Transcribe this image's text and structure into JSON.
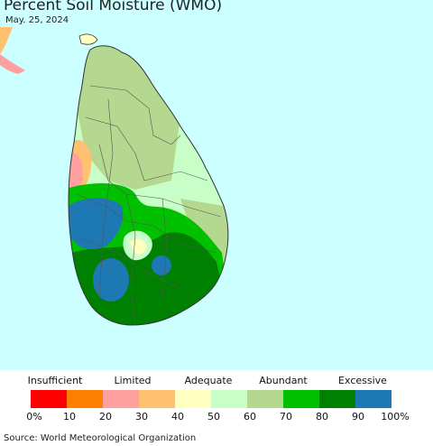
{
  "title": "Percent Soil Moisture (WMO)",
  "date": "May. 25, 2024",
  "legend": {
    "categories": [
      "Insufficient",
      "Limited",
      "Adequate",
      "Abundant",
      "Excessive"
    ],
    "colors": [
      "#ff0000",
      "#ff7f00",
      "#ffa0a0",
      "#ffc070",
      "#ffffc0",
      "#c8ffc8",
      "#b4d890",
      "#00c000",
      "#008000",
      "#1e78b4"
    ],
    "ticks": [
      "0%",
      "10",
      "20",
      "30",
      "40",
      "50",
      "60",
      "70",
      "80",
      "90",
      "100%"
    ]
  },
  "source": "Source: World Meteorological Organization"
}
